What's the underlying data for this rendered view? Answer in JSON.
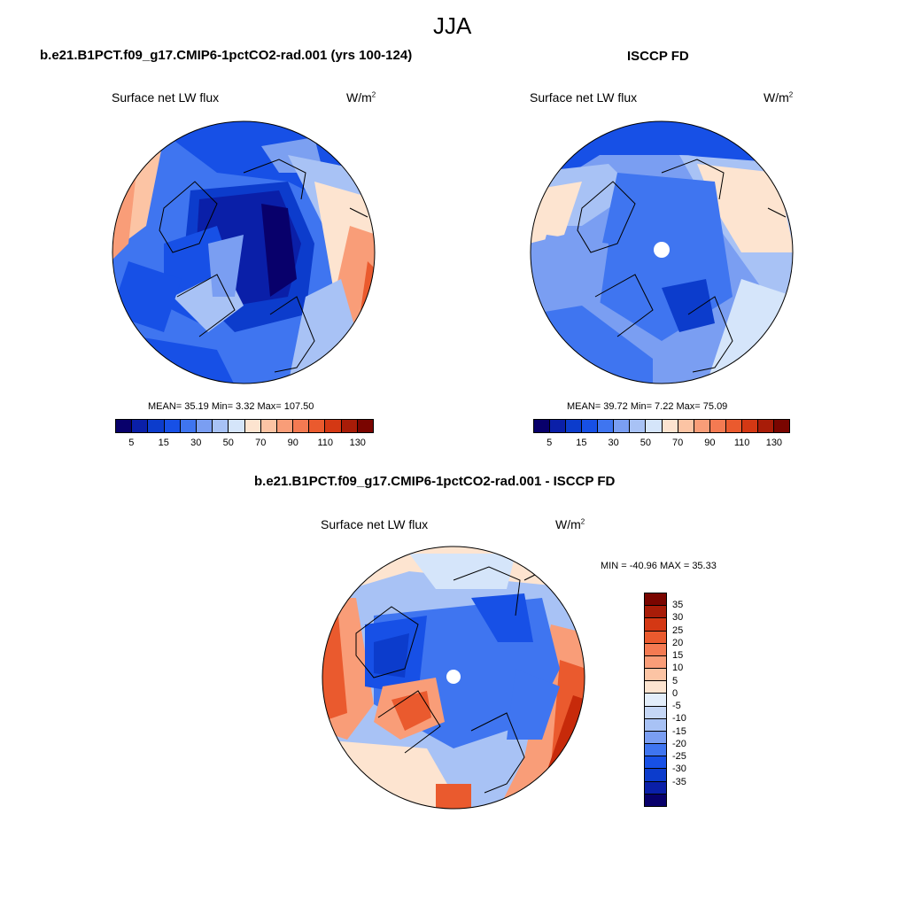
{
  "season": "JJA",
  "panels": {
    "model": {
      "title": "b.e21.B1PCT.f09_g17.CMIP6-1pctCO2-rad.001 (yrs 100-124)",
      "variable": "Surface net LW flux",
      "units": "W/m",
      "units_exp": "2",
      "stats": "MEAN=  35.19  Min=   3.32  Max= 107.50"
    },
    "obs": {
      "title": "ISCCP FD",
      "variable": "Surface net LW flux",
      "units": "W/m",
      "units_exp": "2",
      "stats": "MEAN=  39.72  Min=   7.22  Max=  75.09"
    },
    "diff": {
      "title": "b.e21.B1PCT.f09_g17.CMIP6-1pctCO2-rad.001 - ISCCP FD",
      "variable": "Surface net LW flux",
      "units": "W/m",
      "units_exp": "2",
      "stats": "MIN = -40.96 MAX =  35.33"
    }
  },
  "colorbar_abs": {
    "colors": [
      "#08006b",
      "#0a1fa8",
      "#0c3ccc",
      "#1750e6",
      "#3f75f0",
      "#7a9ef2",
      "#a8c2f5",
      "#d5e5fa",
      "#fde4d0",
      "#fcc4a4",
      "#f99d78",
      "#f47a52",
      "#ea5a2e",
      "#d43814",
      "#a81c08",
      "#7a0500"
    ],
    "labels": [
      "5",
      "15",
      "30",
      "50",
      "70",
      "90",
      "110",
      "130"
    ]
  },
  "colorbar_diff": {
    "colors": [
      "#7a0500",
      "#a81c08",
      "#d43814",
      "#ea5a2e",
      "#f47a52",
      "#f99d78",
      "#fcc4a4",
      "#fde4d0",
      "#e3eefb",
      "#c5d7f6",
      "#a8c2f5",
      "#7a9ef2",
      "#3f75f0",
      "#1750e6",
      "#0c3ccc",
      "#0a1fa8",
      "#08006b"
    ],
    "labels": [
      "35",
      "30",
      "25",
      "20",
      "15",
      "10",
      "5",
      "0",
      "-5",
      "-10",
      "-15",
      "-20",
      "-25",
      "-30",
      "-35"
    ]
  },
  "map_colors": {
    "deep": "#0c3ccc",
    "dark": "#08006b",
    "mid": "#3f75f0",
    "light": "#a8c2f5",
    "pale": "#d5e5fa",
    "peach": "#fde4d0",
    "salmon": "#f99d78",
    "red": "#ea5a2e",
    "dred": "#c72a0a"
  }
}
